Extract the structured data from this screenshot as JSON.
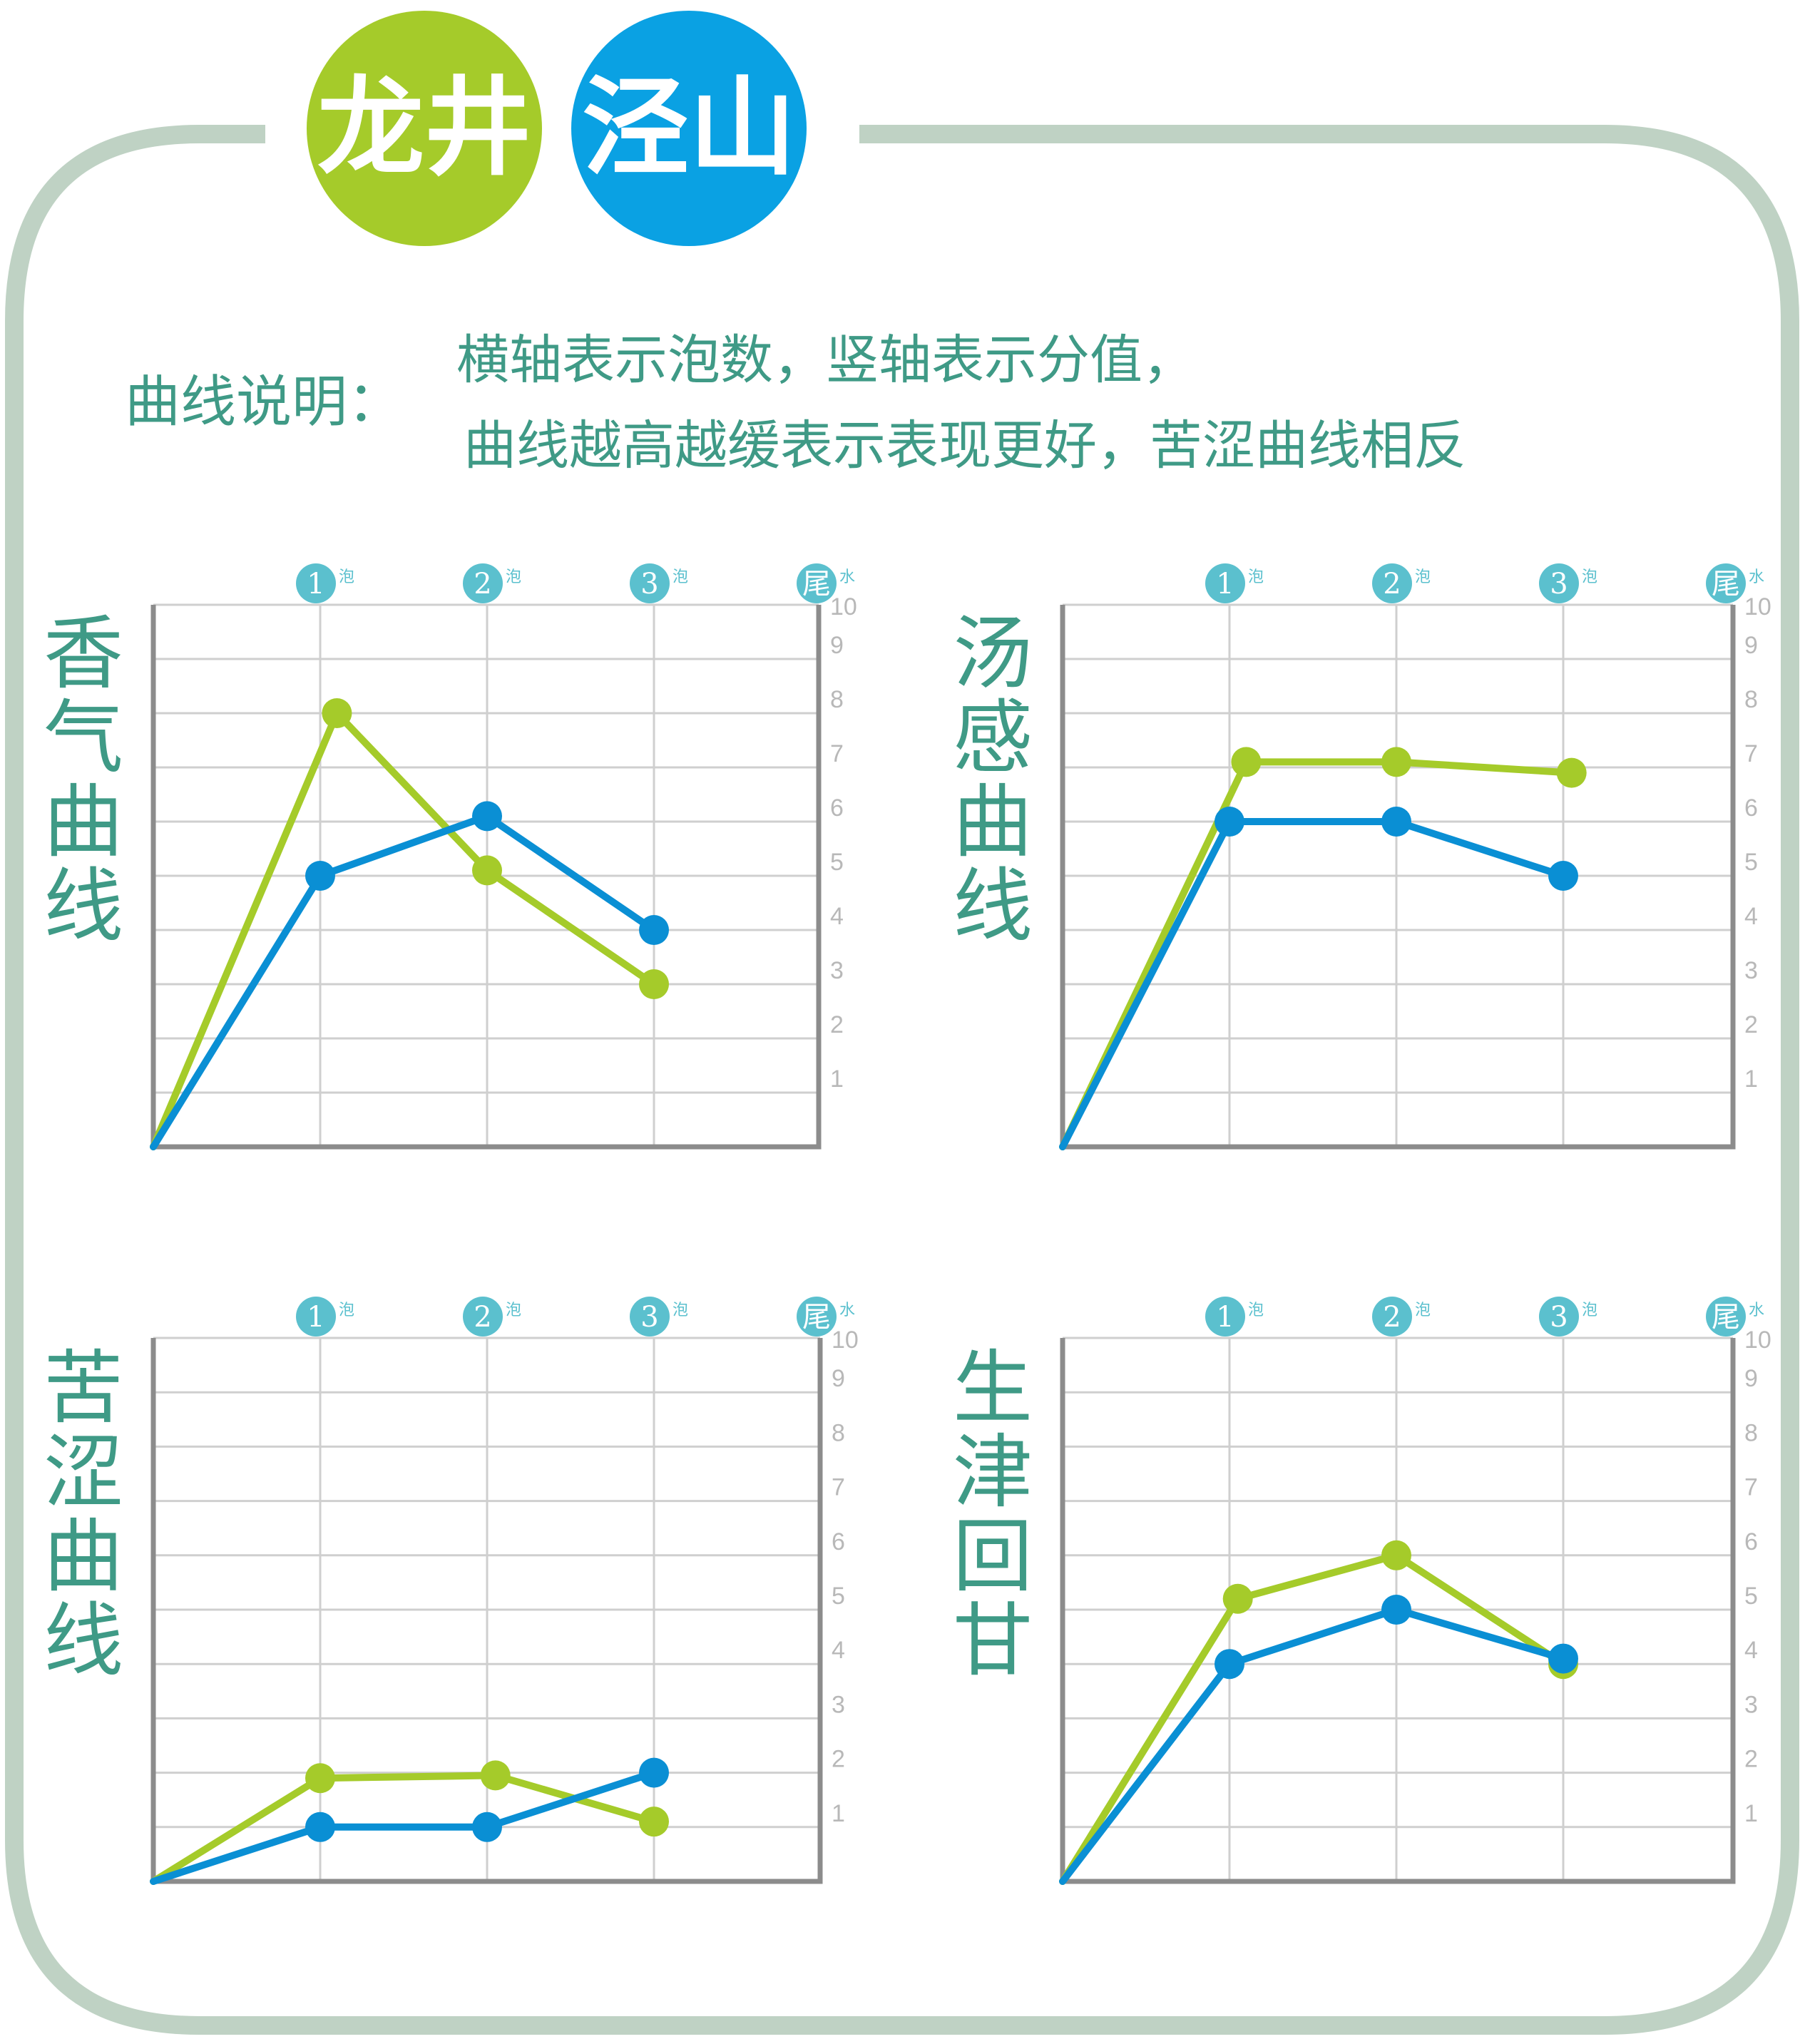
{
  "header": {
    "badge_left": "龙井",
    "badge_right": "泾山",
    "colors": {
      "left": "#a5cb2a",
      "right": "#0aa1e3",
      "frame": "#bfd2c4",
      "text": "#3f9a86"
    }
  },
  "legend": {
    "label": "曲线说明：",
    "line1": "横轴表示泡数，竖轴表示分值，",
    "line2": "曲线越高越缓表示表现更好，苦涩曲线相反"
  },
  "axis": {
    "categories": [
      {
        "num": "1",
        "suffix": "泡"
      },
      {
        "num": "2",
        "suffix": "泡"
      },
      {
        "num": "3",
        "suffix": "泡"
      },
      {
        "num": "尾",
        "suffix": "水"
      }
    ],
    "y_ticks": [
      "1",
      "2",
      "3",
      "4",
      "5",
      "6",
      "7",
      "8",
      "9",
      "10"
    ]
  },
  "chart_data": [
    {
      "type": "line",
      "title": "香气曲线",
      "x": [
        0,
        1,
        2,
        3
      ],
      "ylim": [
        0,
        10
      ],
      "series": [
        {
          "color": "#a5cb2a",
          "x": [
            0,
            1.1,
            2,
            3
          ],
          "values": [
            0,
            8,
            5.1,
            3
          ]
        },
        {
          "color": "#0a8fd4",
          "x": [
            0,
            1,
            2,
            3
          ],
          "values": [
            0,
            5,
            6.1,
            4
          ]
        }
      ]
    },
    {
      "type": "line",
      "title": "汤感曲线",
      "x": [
        0,
        1,
        2,
        3
      ],
      "ylim": [
        0,
        10
      ],
      "series": [
        {
          "color": "#a5cb2a",
          "x": [
            0,
            1.1,
            2,
            3.05
          ],
          "values": [
            0,
            7.1,
            7.1,
            6.9
          ]
        },
        {
          "color": "#0a8fd4",
          "x": [
            0,
            1,
            2,
            3
          ],
          "values": [
            0,
            6,
            6,
            5
          ]
        }
      ]
    },
    {
      "type": "line",
      "title": "苦涩曲线",
      "x": [
        0,
        1,
        2,
        3
      ],
      "ylim": [
        0,
        10
      ],
      "series": [
        {
          "color": "#a5cb2a",
          "x": [
            0,
            1,
            2.05,
            3
          ],
          "values": [
            0,
            1.9,
            1.95,
            1.1
          ]
        },
        {
          "color": "#0a8fd4",
          "x": [
            0,
            1,
            2,
            3
          ],
          "values": [
            0,
            1,
            1,
            2
          ]
        }
      ]
    },
    {
      "type": "line",
      "title": "生津回甘",
      "x": [
        0,
        1,
        2,
        3
      ],
      "ylim": [
        0,
        10
      ],
      "series": [
        {
          "color": "#a5cb2a",
          "x": [
            0,
            1.05,
            2,
            3
          ],
          "values": [
            0,
            5.2,
            6,
            4
          ]
        },
        {
          "color": "#0a8fd4",
          "x": [
            0,
            1,
            2,
            3
          ],
          "values": [
            0,
            4,
            5,
            4.1
          ]
        }
      ]
    }
  ]
}
